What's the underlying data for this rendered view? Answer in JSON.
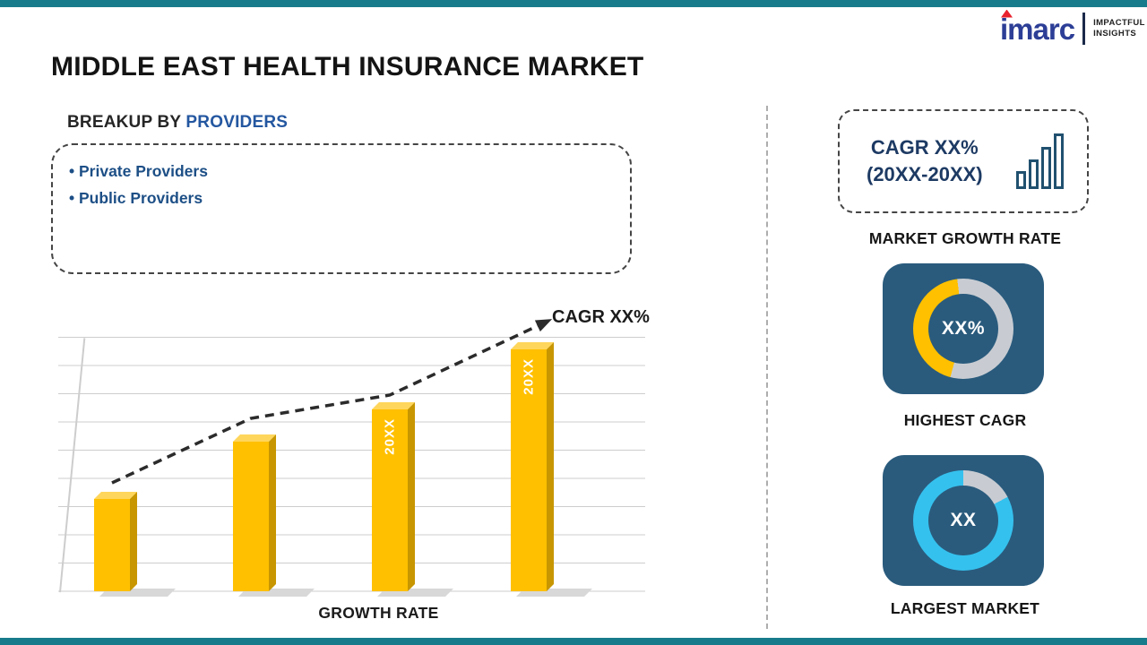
{
  "page": {
    "title": "MIDDLE EAST HEALTH INSURANCE MARKET"
  },
  "logo": {
    "brand": "imarc",
    "tagline_line1": "IMPACTFUL",
    "tagline_line2": "INSIGHTS"
  },
  "breakup": {
    "heading_prefix": "BREAKUP BY ",
    "heading_highlight": "PROVIDERS",
    "items": [
      "• Private Providers",
      "• Public Providers"
    ]
  },
  "chart_data": {
    "type": "bar",
    "title": "",
    "xlabel": "GROWTH RATE",
    "ylabel": "",
    "categories": [
      "",
      "",
      "20XX",
      "20XX"
    ],
    "values": [
      38,
      62,
      75,
      100
    ],
    "value_unit": "relative-height-percent",
    "annotation": "CAGR XX%",
    "trendline": "dashed ascending arrow across bar tops",
    "gridlines": true,
    "legend": "none",
    "bar_color": "#FFC000"
  },
  "right_panel": {
    "growth_box": {
      "line1": "CAGR XX%",
      "line2": "(20XX-20XX)"
    },
    "market_growth_label": "MARKET GROWTH RATE",
    "highest_cagr": {
      "value": "XX%",
      "label": "HIGHEST CAGR",
      "accent_color": "#FFC000"
    },
    "largest_market": {
      "value": "XX",
      "label": "LARGEST MARKET",
      "accent_color": "#35C1EE"
    }
  },
  "colors": {
    "border_teal": "#177B8C",
    "bar_gold": "#FFC000",
    "tile_blue": "#2A5B7D",
    "donut_gray": "#C8CCD2",
    "heading_blue": "#2457A0",
    "bullet_blue": "#1D4F86",
    "navy_text": "#1D3A63",
    "imarc_blue": "#2C3E96",
    "imarc_red": "#E8212E"
  }
}
